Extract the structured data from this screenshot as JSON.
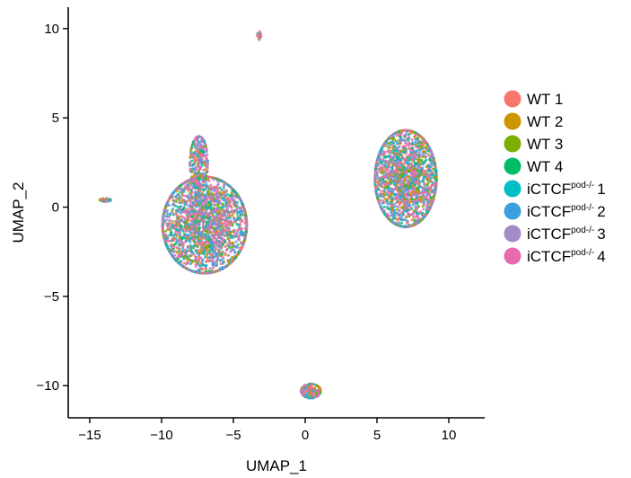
{
  "chart_data": {
    "type": "scatter",
    "title": "",
    "xlabel": "UMAP_1",
    "ylabel": "UMAP_2",
    "xlim": [
      -16.5,
      12.5
    ],
    "ylim": [
      -11.8,
      11.2
    ],
    "x_ticks": [
      -15,
      -10,
      -5,
      0,
      5,
      10
    ],
    "y_ticks": [
      10,
      5,
      0,
      -5,
      -10
    ],
    "grid": false,
    "legend_position": "right",
    "series": [
      {
        "name": "WT 1",
        "color": "#F8766D"
      },
      {
        "name": "WT 2",
        "color": "#CD9600"
      },
      {
        "name": "WT 3",
        "color": "#7CAE00"
      },
      {
        "name": "WT 4",
        "color": "#00BE67"
      },
      {
        "name": "iCTCF",
        "sup": "pod-/-",
        "num": "1",
        "color": "#00BFC4"
      },
      {
        "name": "iCTCF",
        "sup": "pod-/-",
        "num": "2",
        "color": "#3CA0E0"
      },
      {
        "name": "iCTCF",
        "sup": "pod-/-",
        "num": "3",
        "color": "#A58AC8"
      },
      {
        "name": "iCTCF",
        "sup": "pod-/-",
        "num": "4",
        "color": "#E86BAE"
      }
    ],
    "clusters": [
      {
        "name": "left-main",
        "center": [
          -7.0,
          -1.0
        ],
        "spread": [
          2.6,
          2.4
        ],
        "points": 2600
      },
      {
        "name": "left-arm",
        "center": [
          -7.4,
          2.5
        ],
        "spread": [
          0.55,
          1.3
        ],
        "points": 300
      },
      {
        "name": "right-main",
        "center": [
          7.0,
          1.6
        ],
        "spread": [
          1.9,
          2.4
        ],
        "points": 2200
      },
      {
        "name": "bottom",
        "center": [
          0.4,
          -10.3
        ],
        "spread": [
          0.6,
          0.35
        ],
        "points": 220
      },
      {
        "name": "far-left",
        "center": [
          -13.9,
          0.4
        ],
        "spread": [
          0.35,
          0.08
        ],
        "points": 40
      },
      {
        "name": "top",
        "center": [
          -3.2,
          9.6
        ],
        "spread": [
          0.12,
          0.2
        ],
        "points": 30
      }
    ]
  }
}
